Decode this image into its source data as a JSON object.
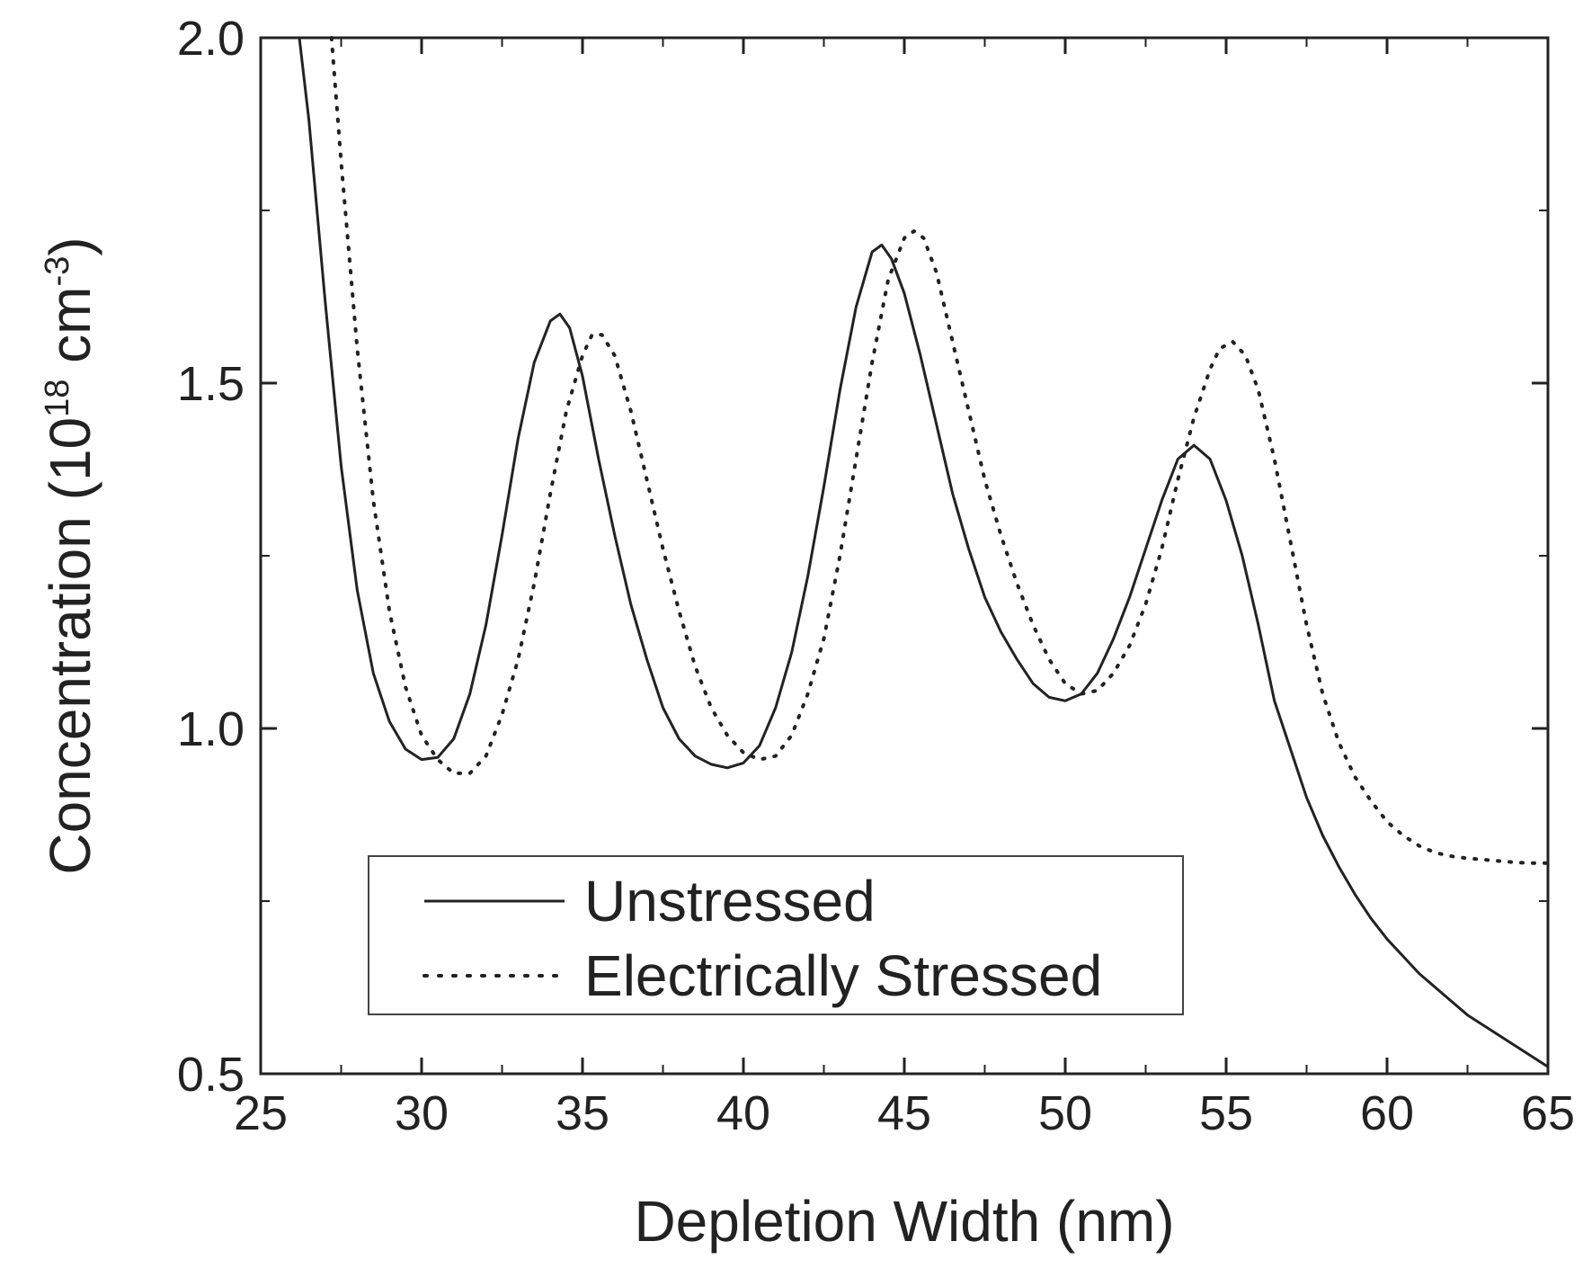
{
  "chart_data": {
    "type": "line",
    "title": "",
    "xlabel": "Depletion Width (nm)",
    "ylabel": "Concentration (10",
    "ylabel_exp1": "18",
    "ylabel_unit": " cm",
    "ylabel_exp2": "-3",
    "ylabel_close": ")",
    "xlim": [
      25,
      65
    ],
    "ylim": [
      0.5,
      2.0
    ],
    "x_ticks": [
      25,
      30,
      35,
      40,
      45,
      50,
      55,
      60,
      65
    ],
    "x_tick_labels": [
      "25",
      "30",
      "35",
      "40",
      "45",
      "50",
      "55",
      "60",
      "65"
    ],
    "y_ticks": [
      0.5,
      1.0,
      1.5,
      2.0
    ],
    "y_tick_labels": [
      "0.5",
      "1.0",
      "1.5",
      "2.0"
    ],
    "legend_position": "bottom-left",
    "grid": false,
    "series": [
      {
        "name": "Unstressed",
        "style": "solid",
        "x": [
          26.2,
          26.5,
          27.0,
          27.5,
          28.0,
          28.5,
          29.0,
          29.5,
          30.0,
          30.5,
          31.0,
          31.5,
          32.0,
          32.5,
          33.0,
          33.5,
          34.0,
          34.3,
          34.6,
          35.0,
          35.5,
          36.0,
          36.5,
          37.0,
          37.5,
          38.0,
          38.5,
          39.0,
          39.5,
          40.0,
          40.5,
          41.0,
          41.5,
          42.0,
          42.5,
          43.0,
          43.5,
          44.0,
          44.3,
          44.6,
          45.0,
          45.5,
          46.0,
          46.5,
          47.0,
          47.5,
          48.0,
          48.5,
          49.0,
          49.5,
          50.0,
          50.5,
          51.0,
          51.5,
          52.0,
          52.5,
          53.0,
          53.5,
          54.0,
          54.5,
          55.0,
          55.5,
          56.0,
          56.5,
          57.0,
          57.5,
          58.0,
          58.5,
          59.0,
          59.5,
          60.0,
          60.5,
          61.0,
          61.5,
          62.0,
          62.5,
          63.0,
          63.5,
          64.0,
          64.5,
          65.0
        ],
        "y": [
          2.0,
          1.88,
          1.62,
          1.38,
          1.2,
          1.08,
          1.01,
          0.97,
          0.955,
          0.958,
          0.985,
          1.05,
          1.15,
          1.28,
          1.42,
          1.53,
          1.59,
          1.6,
          1.58,
          1.51,
          1.39,
          1.28,
          1.18,
          1.1,
          1.03,
          0.985,
          0.96,
          0.948,
          0.943,
          0.95,
          0.975,
          1.03,
          1.11,
          1.22,
          1.35,
          1.49,
          1.61,
          1.69,
          1.7,
          1.68,
          1.63,
          1.54,
          1.44,
          1.34,
          1.26,
          1.19,
          1.14,
          1.1,
          1.065,
          1.045,
          1.04,
          1.05,
          1.08,
          1.13,
          1.19,
          1.26,
          1.33,
          1.39,
          1.41,
          1.39,
          1.33,
          1.25,
          1.15,
          1.04,
          0.97,
          0.9,
          0.845,
          0.8,
          0.76,
          0.725,
          0.695,
          0.67,
          0.645,
          0.625,
          0.605,
          0.585,
          0.57,
          0.555,
          0.54,
          0.525,
          0.51
        ]
      },
      {
        "name": "Electrically Stressed",
        "style": "dotted",
        "x": [
          27.2,
          27.5,
          28.0,
          28.5,
          29.0,
          29.5,
          30.0,
          30.5,
          31.0,
          31.5,
          32.0,
          32.5,
          33.0,
          33.5,
          34.0,
          34.5,
          35.0,
          35.3,
          35.6,
          36.0,
          36.5,
          37.0,
          37.5,
          38.0,
          38.5,
          39.0,
          39.5,
          40.0,
          40.5,
          41.0,
          41.5,
          42.0,
          42.5,
          43.0,
          43.5,
          44.0,
          44.5,
          45.0,
          45.3,
          45.6,
          46.0,
          46.5,
          47.0,
          47.5,
          48.0,
          48.5,
          49.0,
          49.5,
          50.0,
          50.5,
          51.0,
          51.5,
          52.0,
          52.5,
          53.0,
          53.5,
          54.0,
          54.5,
          54.8,
          55.2,
          55.6,
          56.0,
          56.5,
          57.0,
          57.5,
          58.0,
          58.5,
          59.0,
          59.5,
          60.0,
          60.5,
          61.0,
          61.5,
          62.0,
          62.5,
          63.0,
          63.5,
          64.0,
          64.5,
          65.0
        ],
        "y": [
          2.0,
          1.82,
          1.55,
          1.33,
          1.17,
          1.06,
          0.99,
          0.955,
          0.935,
          0.935,
          0.96,
          1.02,
          1.1,
          1.21,
          1.34,
          1.46,
          1.54,
          1.57,
          1.57,
          1.54,
          1.46,
          1.36,
          1.26,
          1.17,
          1.09,
          1.03,
          0.99,
          0.965,
          0.955,
          0.96,
          0.99,
          1.05,
          1.13,
          1.25,
          1.39,
          1.53,
          1.65,
          1.71,
          1.72,
          1.71,
          1.66,
          1.56,
          1.46,
          1.36,
          1.28,
          1.21,
          1.15,
          1.1,
          1.065,
          1.05,
          1.055,
          1.08,
          1.12,
          1.18,
          1.26,
          1.36,
          1.45,
          1.52,
          1.55,
          1.56,
          1.54,
          1.49,
          1.39,
          1.27,
          1.15,
          1.05,
          0.98,
          0.93,
          0.895,
          0.865,
          0.845,
          0.83,
          0.82,
          0.815,
          0.812,
          0.81,
          0.808,
          0.806,
          0.805,
          0.805
        ]
      }
    ]
  }
}
